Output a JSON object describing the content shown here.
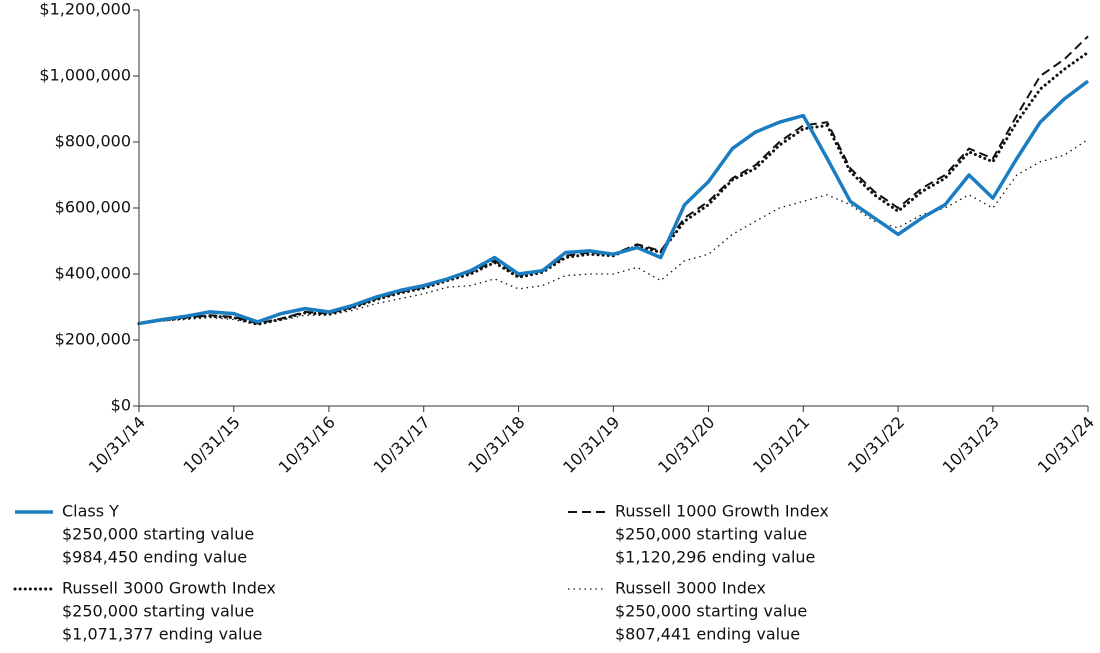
{
  "chart_data": {
    "type": "line",
    "x": [
      "10/31/14",
      "01/31/15",
      "04/30/15",
      "07/31/15",
      "10/31/15",
      "01/31/16",
      "04/30/16",
      "07/31/16",
      "10/31/16",
      "01/31/17",
      "04/30/17",
      "07/31/17",
      "10/31/17",
      "01/31/18",
      "04/30/18",
      "07/31/18",
      "10/31/18",
      "01/31/19",
      "04/30/19",
      "07/31/19",
      "10/31/19",
      "01/31/20",
      "04/30/20",
      "07/31/20",
      "10/31/20",
      "01/31/21",
      "04/30/21",
      "07/31/21",
      "10/31/21",
      "01/31/22",
      "04/30/22",
      "07/31/22",
      "10/31/22",
      "01/31/23",
      "04/30/23",
      "07/31/23",
      "10/31/23",
      "01/31/24",
      "04/30/24",
      "07/31/24",
      "10/31/24"
    ],
    "series": [
      {
        "name": "Class Y",
        "color": "#1a7dc1",
        "dash": "solid",
        "legend_lines": [
          "$250,000 starting value",
          "$984,450 ending value"
        ],
        "values": [
          250000,
          262000,
          272000,
          285000,
          280000,
          255000,
          280000,
          295000,
          285000,
          305000,
          330000,
          350000,
          365000,
          385000,
          410000,
          450000,
          400000,
          410000,
          465000,
          470000,
          460000,
          480000,
          450000,
          610000,
          680000,
          780000,
          830000,
          860000,
          880000,
          750000,
          620000,
          570000,
          520000,
          570000,
          610000,
          700000,
          630000,
          750000,
          860000,
          930000,
          984450
        ]
      },
      {
        "name": "Russell 1000 Growth Index",
        "color": "#111111",
        "dash": "dashed",
        "legend_lines": [
          "$250,000 starting value",
          "$1,120,296 ending value"
        ],
        "values": [
          250000,
          262000,
          268000,
          275000,
          270000,
          250000,
          265000,
          285000,
          280000,
          300000,
          325000,
          345000,
          360000,
          385000,
          405000,
          440000,
          395000,
          410000,
          455000,
          465000,
          460000,
          490000,
          470000,
          570000,
          620000,
          690000,
          730000,
          800000,
          850000,
          860000,
          720000,
          650000,
          600000,
          660000,
          700000,
          780000,
          750000,
          880000,
          1000000,
          1050000,
          1120296
        ]
      },
      {
        "name": "Russell 3000 Growth Index",
        "color": "#111111",
        "dash": "dotted-bold",
        "legend_lines": [
          "$250,000 starting value",
          "$1,071,377 ending value"
        ],
        "values": [
          250000,
          260000,
          267000,
          272000,
          268000,
          248000,
          263000,
          282000,
          278000,
          298000,
          322000,
          342000,
          357000,
          380000,
          400000,
          435000,
          390000,
          405000,
          450000,
          460000,
          455000,
          485000,
          465000,
          560000,
          610000,
          685000,
          720000,
          790000,
          840000,
          850000,
          710000,
          640000,
          590000,
          650000,
          690000,
          770000,
          740000,
          860000,
          960000,
          1020000,
          1071377
        ]
      },
      {
        "name": "Russell 3000 Index",
        "color": "#111111",
        "dash": "dotted-thin",
        "legend_lines": [
          "$250,000 starting value",
          "$807,441 ending value"
        ],
        "values": [
          250000,
          258000,
          262000,
          268000,
          262000,
          245000,
          260000,
          275000,
          275000,
          290000,
          310000,
          325000,
          340000,
          360000,
          365000,
          385000,
          355000,
          365000,
          395000,
          400000,
          400000,
          420000,
          380000,
          440000,
          460000,
          520000,
          560000,
          600000,
          620000,
          640000,
          610000,
          560000,
          540000,
          580000,
          600000,
          640000,
          600000,
          700000,
          740000,
          760000,
          807441
        ]
      }
    ],
    "ylim": [
      0,
      1200000
    ],
    "yticks": [
      {
        "value": 0,
        "label": "$0"
      },
      {
        "value": 200000,
        "label": "$200,000"
      },
      {
        "value": 400000,
        "label": "$400,000"
      },
      {
        "value": 600000,
        "label": "$600,000"
      },
      {
        "value": 800000,
        "label": "$800,000"
      },
      {
        "value": 1000000,
        "label": "$1,000,000"
      },
      {
        "value": 1200000,
        "label": "$1,200,000"
      }
    ],
    "xlim": [
      "10/31/14",
      "10/31/24"
    ],
    "xticks": [
      "10/31/14",
      "10/31/15",
      "10/31/16",
      "10/31/17",
      "10/31/18",
      "10/31/19",
      "10/31/20",
      "10/31/21",
      "10/31/22",
      "10/31/23",
      "10/31/24"
    ]
  }
}
